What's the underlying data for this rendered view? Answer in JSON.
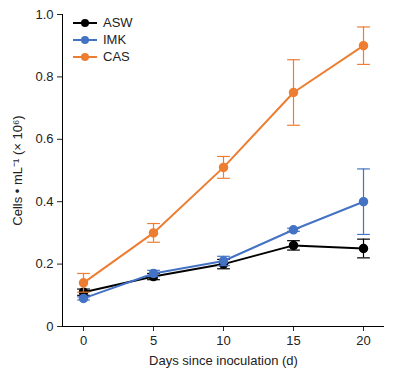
{
  "chart_data": {
    "type": "line",
    "x_label": "Days since inoculation (d)",
    "y_label": "Cells • mL⁻¹ (× 10⁶)",
    "x": [
      0,
      5,
      10,
      15,
      20
    ],
    "series": [
      {
        "name": "ASW",
        "color": "#000000",
        "values": [
          0.11,
          0.16,
          0.2,
          0.26,
          0.25
        ],
        "error": [
          0.01,
          0.01,
          0.015,
          0.015,
          0.03
        ]
      },
      {
        "name": "IMK",
        "color": "#4472c4",
        "values": [
          0.09,
          0.17,
          0.21,
          0.31,
          0.4
        ],
        "error": [
          0.005,
          0.01,
          0.015,
          0.005,
          0.105
        ]
      },
      {
        "name": "CAS",
        "color": "#ed7d31",
        "values": [
          0.14,
          0.3,
          0.51,
          0.75,
          0.9
        ],
        "error": [
          0.03,
          0.03,
          0.035,
          0.105,
          0.06
        ]
      }
    ],
    "xlim": [
      -1.5,
      21.5
    ],
    "xticks": [
      0,
      5,
      10,
      15,
      20
    ],
    "ylim": [
      0,
      1
    ],
    "yticks": [
      0,
      0.2,
      0.4,
      0.6,
      0.8,
      {
        "value": 1,
        "label": "1.0"
      }
    ],
    "marker": "circle",
    "line_style": "solid",
    "legend": "top-left",
    "grid": false
  }
}
